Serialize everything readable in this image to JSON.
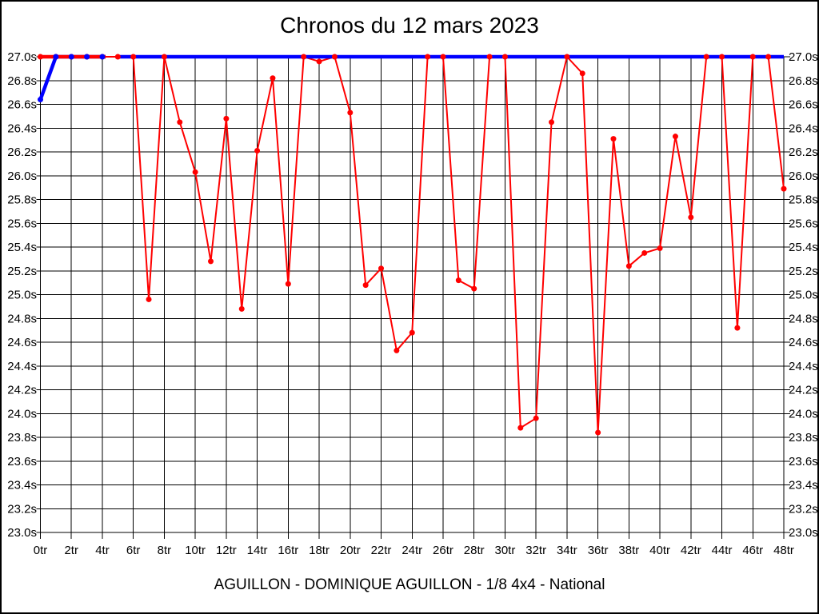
{
  "header": {
    "title": "Chronos du 12 mars 2023"
  },
  "footer": {
    "caption": "AGUILLON - DOMINIQUE AGUILLON - 1/8 4x4 - National"
  },
  "colors": {
    "lap_series": "#ff0000",
    "reference_series": "#0000ff",
    "grid": "#000000",
    "background": "#ffffff"
  },
  "chart_data": {
    "type": "line",
    "title": "Chronos du 12 mars 2023",
    "x_unit": "tr",
    "y_unit": "s",
    "xlim": [
      0,
      48
    ],
    "ylim": [
      23.0,
      27.0
    ],
    "xtick_step": 2,
    "ytick_step": 0.2,
    "grid": true,
    "legend": "none",
    "x": [
      0,
      1,
      2,
      3,
      4,
      5,
      6,
      7,
      8,
      9,
      10,
      11,
      12,
      13,
      14,
      15,
      16,
      17,
      18,
      19,
      20,
      21,
      22,
      23,
      24,
      25,
      26,
      27,
      28,
      29,
      30,
      31,
      32,
      33,
      34,
      35,
      36,
      37,
      38,
      39,
      40,
      41,
      42,
      43,
      44,
      45,
      46,
      47,
      48
    ],
    "series": [
      {
        "name": "lap-times",
        "color": "#ff0000",
        "marker": "circle",
        "values": [
          27.0,
          27.0,
          27.0,
          27.0,
          27.0,
          27.0,
          27.0,
          24.96,
          27.0,
          26.45,
          26.03,
          25.28,
          26.48,
          24.88,
          26.21,
          26.82,
          25.09,
          27.0,
          26.96,
          27.0,
          26.53,
          25.08,
          25.22,
          24.53,
          24.68,
          27.0,
          27.0,
          25.12,
          25.05,
          27.0,
          27.0,
          23.88,
          23.96,
          26.45,
          27.0,
          26.86,
          23.84,
          26.31,
          25.24,
          25.35,
          25.39,
          26.33,
          25.65,
          27.0,
          27.0,
          24.72,
          27.0,
          27.0,
          25.89
        ]
      },
      {
        "name": "reference-27s",
        "color": "#0000ff",
        "marker": "circle",
        "values": [
          26.64,
          27.0,
          27.0,
          27.0,
          27.0,
          27.0,
          27.0,
          27.0,
          27.0,
          27.0,
          27.0,
          27.0,
          27.0,
          27.0,
          27.0,
          27.0,
          27.0,
          27.0,
          27.0,
          27.0,
          27.0,
          27.0,
          27.0,
          27.0,
          27.0,
          27.0,
          27.0,
          27.0,
          27.0,
          27.0,
          27.0,
          27.0,
          27.0,
          27.0,
          27.0,
          27.0,
          27.0,
          27.0,
          27.0,
          27.0,
          27.0,
          27.0,
          27.0,
          27.0,
          27.0,
          27.0,
          27.0,
          27.0,
          27.0
        ]
      }
    ],
    "x_tick_labels": [
      "0tr",
      "2tr",
      "4tr",
      "6tr",
      "8tr",
      "10tr",
      "12tr",
      "14tr",
      "16tr",
      "18tr",
      "20tr",
      "22tr",
      "24tr",
      "26tr",
      "28tr",
      "30tr",
      "32tr",
      "34tr",
      "36tr",
      "38tr",
      "40tr",
      "42tr",
      "44tr",
      "46tr",
      "48tr"
    ],
    "y_tick_labels": [
      "27.0s",
      "26.8s",
      "26.6s",
      "26.4s",
      "26.2s",
      "26.0s",
      "25.8s",
      "25.6s",
      "25.4s",
      "25.2s",
      "25.0s",
      "24.8s",
      "24.6s",
      "24.4s",
      "24.2s",
      "24.0s",
      "23.8s",
      "23.6s",
      "23.4s",
      "23.2s",
      "23.0s"
    ]
  }
}
